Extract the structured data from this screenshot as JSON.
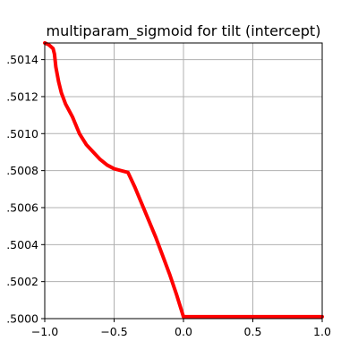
{
  "chart_data": {
    "type": "line",
    "title": "multiparam_sigmoid for tilt (intercept)",
    "xlabel": "",
    "ylabel": "",
    "xlim": [
      -1.0,
      1.0
    ],
    "ylim": [
      0.5,
      0.50149
    ],
    "x_ticks": [
      -1.0,
      -0.5,
      0.0,
      0.5,
      1.0
    ],
    "x_tick_labels": [
      "−1.0",
      "−0.5",
      "0.0",
      "0.5",
      "1.0"
    ],
    "y_ticks": [
      0.5,
      0.5002,
      0.5004,
      0.5006,
      0.5008,
      0.501,
      0.5012,
      0.5014
    ],
    "y_tick_labels": [
      ".5000",
      ".5002",
      ".5004",
      ".5006",
      ".5008",
      ".5010",
      ".5012",
      ".5014"
    ],
    "grid": true,
    "series": [
      {
        "color": "#ff0000",
        "x": [
          -1.0,
          -0.97,
          -0.94,
          -0.93,
          -0.92,
          -0.9,
          -0.88,
          -0.85,
          -0.8,
          -0.75,
          -0.7,
          -0.65,
          -0.6,
          -0.55,
          -0.5,
          -0.45,
          -0.4,
          -0.35,
          -0.3,
          -0.25,
          -0.2,
          -0.15,
          -0.1,
          -0.05,
          0.0,
          0.2,
          0.4,
          0.6,
          0.8,
          1.0
        ],
        "y": [
          0.50149,
          0.50148,
          0.50146,
          0.50143,
          0.50136,
          0.50128,
          0.50122,
          0.50116,
          0.50109,
          0.501,
          0.50094,
          0.5009,
          0.50086,
          0.50083,
          0.50081,
          0.5008,
          0.50079,
          0.50071,
          0.50062,
          0.50053,
          0.50044,
          0.50034,
          0.50024,
          0.50013,
          0.50001,
          0.50001,
          0.50001,
          0.50001,
          0.50001,
          0.50001
        ]
      }
    ]
  }
}
